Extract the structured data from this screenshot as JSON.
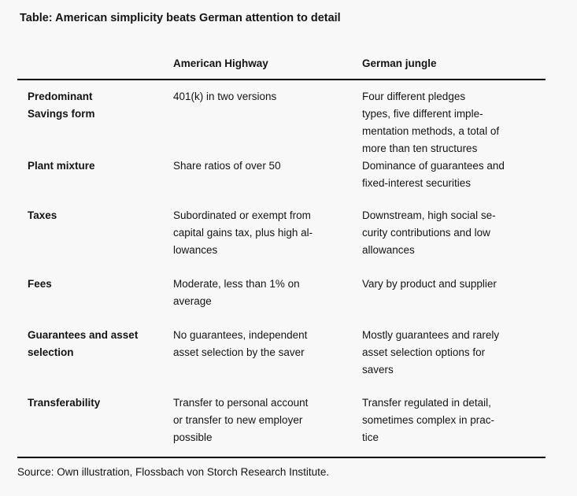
{
  "page": {
    "title": "Table: American simplicity beats German attention to detail",
    "source": "Source: Own illustration, Flossbach von Storch Research Institute."
  },
  "table": {
    "headers": {
      "american": "American Highway",
      "german": "German jungle"
    },
    "rows": [
      {
        "label": [
          "Predominant",
          "Savings form"
        ],
        "american": [
          "401(k) in two versions"
        ],
        "german": [
          "Four different pledges",
          "types, five different imple-",
          "mentation methods, a total of",
          "more than ten structures"
        ]
      },
      {
        "label": [
          "Plant mixture"
        ],
        "american": [
          "Share ratios of over 50"
        ],
        "german": [
          "Dominance of guarantees and",
          "fixed-interest securities"
        ]
      },
      {
        "label": [
          "Taxes"
        ],
        "american": [
          "Subordinated or exempt from",
          "capital gains tax, plus high al-",
          "lowances"
        ],
        "german": [
          "Downstream, high social se-",
          "curity contributions and low",
          "allowances"
        ]
      },
      {
        "label": [
          "Fees"
        ],
        "american": [
          "Moderate, less than 1% on",
          "average"
        ],
        "german": [
          "Vary by product and supplier"
        ]
      },
      {
        "label": [
          "Guarantees and asset",
          "selection"
        ],
        "american": [
          "No guarantees, independent",
          "asset selection by the saver"
        ],
        "german": [
          "Mostly guarantees and rarely",
          "asset selection options for",
          "savers"
        ]
      },
      {
        "label": [
          "Transferability"
        ],
        "american": [
          "Transfer to personal account",
          "or transfer to new employer",
          "possible"
        ],
        "german": [
          "Transfer regulated in detail,",
          "sometimes complex in prac-",
          "tice"
        ]
      }
    ]
  }
}
